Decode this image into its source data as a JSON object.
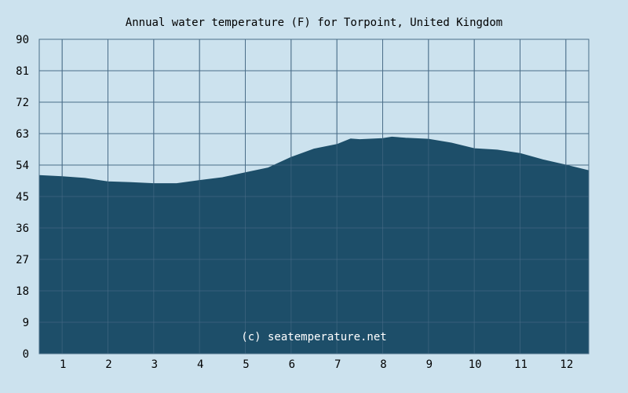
{
  "chart_data": {
    "type": "area",
    "title": "Annual water temperature (F) for Torpoint, United Kingdom",
    "xlabel": "",
    "ylabel": "",
    "xlim": [
      0.5,
      12.5
    ],
    "ylim": [
      0,
      90
    ],
    "yticks": [
      0,
      9,
      18,
      27,
      36,
      45,
      54,
      63,
      72,
      81,
      90
    ],
    "xticks": [
      "1",
      "2",
      "3",
      "4",
      "5",
      "6",
      "7",
      "8",
      "9",
      "10",
      "11",
      "12"
    ],
    "grid": true,
    "watermark": "(c) seatemperature.net",
    "colors": {
      "background": "#cce2ee",
      "fill": "#1d4e69",
      "grid": "#4a6e88"
    },
    "series": [
      {
        "x": [
          0.5,
          1.0,
          1.5,
          2.0,
          2.5,
          3.0,
          3.5,
          4.0,
          4.5,
          5.0,
          5.5,
          6.0,
          6.5,
          7.0,
          7.3,
          7.5,
          8.0,
          8.2,
          8.5,
          9.0,
          9.5,
          10.0,
          10.5,
          11.0,
          11.5,
          12.0,
          12.5
        ],
        "y": [
          51.0,
          50.7,
          50.2,
          49.2,
          49.0,
          48.7,
          48.7,
          49.6,
          50.4,
          51.8,
          53.2,
          56.2,
          58.6,
          59.9,
          61.5,
          61.3,
          61.6,
          62.0,
          61.7,
          61.4,
          60.3,
          58.7,
          58.3,
          57.3,
          55.5,
          54.0,
          52.4
        ]
      }
    ]
  }
}
